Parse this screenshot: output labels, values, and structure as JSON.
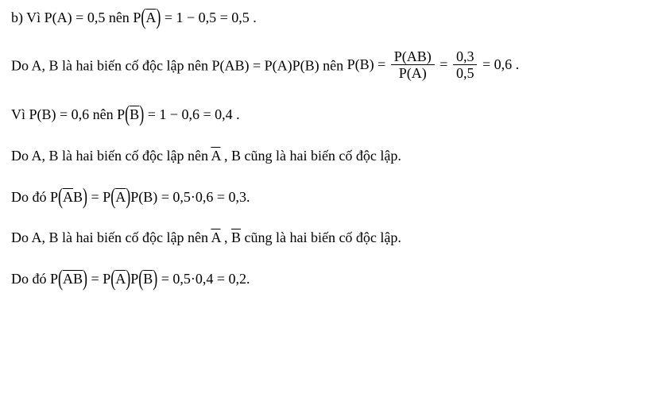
{
  "line1": {
    "prefix": "b) Vì P(A) = 0,5 nên ",
    "lhs": "P",
    "argA": "A",
    "rhs": " = 1 − 0,5 = 0,5 ."
  },
  "line2": {
    "prefix": "Do A, B là hai biến cố độc lập nên P(AB) = P(A)P(B) nên ",
    "pb_label": "P(B)",
    "eq": " = ",
    "frac1_num": "P(AB)",
    "frac1_den": "P(A)",
    "eq2": " = ",
    "frac2_num": "0,3",
    "frac2_den": "0,5",
    "tail": " = 0,6 ."
  },
  "line3": {
    "prefix": "Vì P(B) = 0,6 nên ",
    "lhs": "P",
    "argB": "B",
    "rhs": " = 1 − 0,6 = 0,4 ."
  },
  "line4": {
    "prefix": "Do A, B là hai biến cố độc lập nên  ",
    "A": "A",
    "mid": " , B cũng là hai biến cố độc lập."
  },
  "line5": {
    "prefix": "Do đó ",
    "lhs": "P",
    "argA": "A",
    "argB": "B",
    "eq": " = ",
    "p1": "P",
    "p2": "P(B)",
    "rhs": " = 0,5·0,6 = 0,3."
  },
  "line6": {
    "prefix": "Do A, B là hai biến cố độc lập nên  ",
    "A": "A",
    "mid": " , ",
    "B": "B",
    "tail": " cũng là hai biến cố độc lập."
  },
  "line7": {
    "prefix": "Do đó ",
    "lhs": "P",
    "argA": "A",
    "argB": "B",
    "eq": " = ",
    "p1": "P",
    "p2": "P",
    "rhs": " = 0,5·0,4 = 0,2."
  }
}
